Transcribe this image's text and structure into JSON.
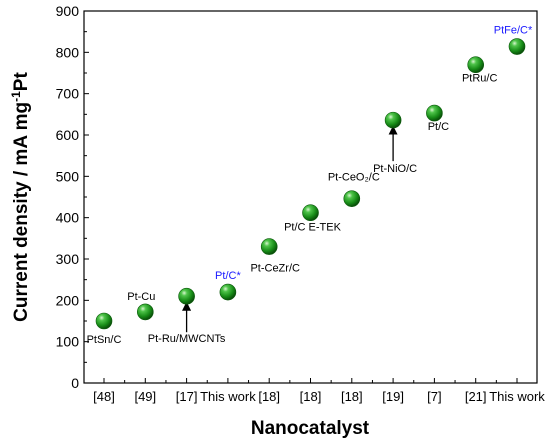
{
  "chart_data": {
    "type": "scatter",
    "xlabel": "Nanocatalyst",
    "ylabel_main": "Current density / mA mg",
    "ylabel_sup": "-1",
    "ylabel_tail": "Pt",
    "ylim": [
      0,
      900
    ],
    "yticks": [
      0,
      100,
      200,
      300,
      400,
      500,
      600,
      700,
      800,
      900
    ],
    "categories": [
      "[48]",
      "[49]",
      "[17]",
      "This work",
      "[18]",
      "[18]",
      "[18]",
      "[19]",
      "[7]",
      "[21]",
      "This work"
    ],
    "grid": false,
    "legend": "none",
    "marker_color": "#1a8a1a",
    "highlight_color": "#1a1aff",
    "points": [
      {
        "category": "[48]",
        "value": 150,
        "label": "PtSn/C",
        "highlight": false
      },
      {
        "category": "[49]",
        "value": 172,
        "label": "Pt-Cu",
        "highlight": false
      },
      {
        "category": "[17]",
        "value": 210,
        "label": "Pt-Ru/MWCNTs",
        "highlight": false,
        "arrow": true
      },
      {
        "category": "This work",
        "value": 220,
        "label": "Pt/C*",
        "highlight": true
      },
      {
        "category": "[18]",
        "value": 330,
        "label": "Pt-CeZr/C",
        "highlight": false
      },
      {
        "category": "[18]",
        "value": 412,
        "label": "Pt/C E-TEK",
        "highlight": false
      },
      {
        "category": "[18]",
        "value": 446,
        "label": "Pt-CeO₂/C",
        "highlight": false
      },
      {
        "category": "[19]",
        "value": 636,
        "label": "Pt-NiO/C",
        "highlight": false,
        "arrow": true
      },
      {
        "category": "[7]",
        "value": 653,
        "label": "Pt/C",
        "highlight": false
      },
      {
        "category": "[21]",
        "value": 770,
        "label": "PtRu/C",
        "highlight": false
      },
      {
        "category": "This work",
        "value": 814,
        "label": "PtFe/C*",
        "highlight": true
      }
    ]
  }
}
